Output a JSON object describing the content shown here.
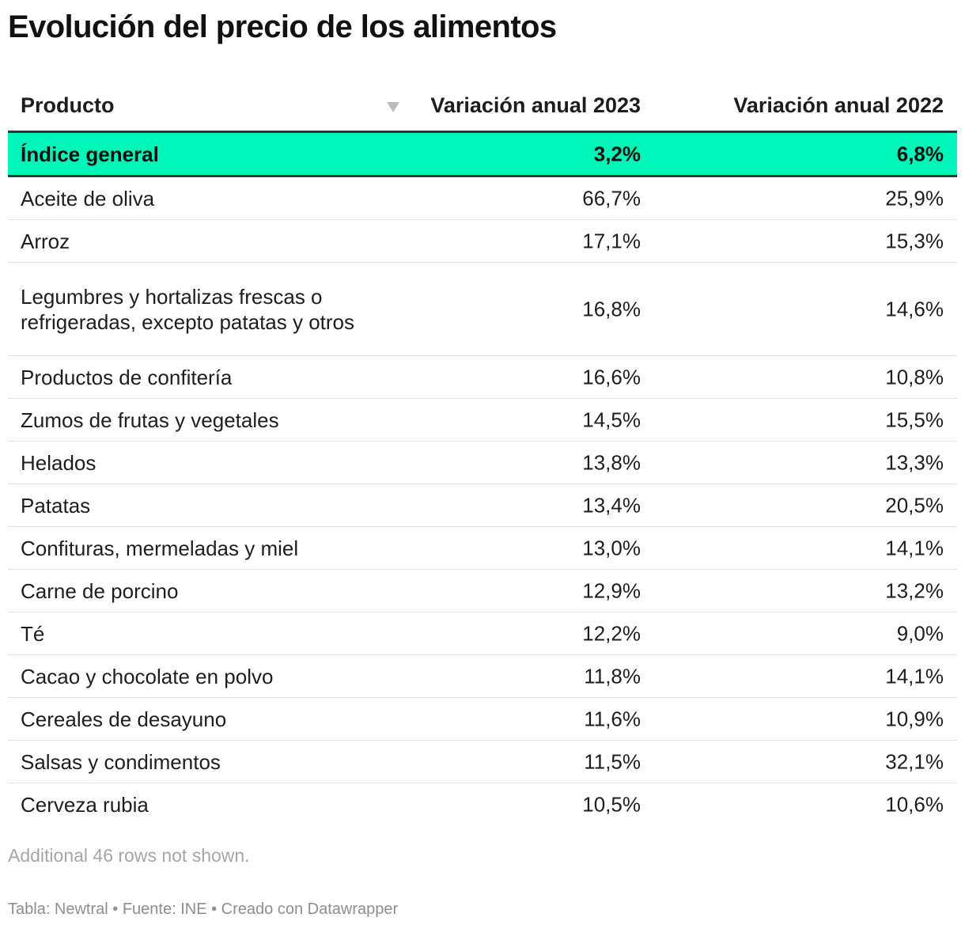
{
  "chart_data": {
    "type": "table",
    "title": "Evolución del precio de los alimentos",
    "columns": [
      "Producto",
      "Variación anual 2023",
      "Variación anual 2022"
    ],
    "sorted_column": "Variación anual 2023",
    "sort_direction": "descending",
    "highlight_color": "#00f5b8",
    "rows": [
      {
        "producto": "Índice general",
        "v2023": "3,2%",
        "v2022": "6,8%",
        "highlight": true
      },
      {
        "producto": "Aceite de oliva",
        "v2023": "66,7%",
        "v2022": "25,9%"
      },
      {
        "producto": "Arroz",
        "v2023": "17,1%",
        "v2022": "15,3%"
      },
      {
        "producto": "Legumbres y hortalizas frescas o refrigeradas, excepto patatas y otros",
        "v2023": "16,8%",
        "v2022": "14,6%"
      },
      {
        "producto": "Productos de confitería",
        "v2023": "16,6%",
        "v2022": "10,8%"
      },
      {
        "producto": "Zumos de frutas y vegetales",
        "v2023": "14,5%",
        "v2022": "15,5%"
      },
      {
        "producto": "Helados",
        "v2023": "13,8%",
        "v2022": "13,3%"
      },
      {
        "producto": "Patatas",
        "v2023": "13,4%",
        "v2022": "20,5%"
      },
      {
        "producto": "Confituras, mermeladas y miel",
        "v2023": "13,0%",
        "v2022": "14,1%"
      },
      {
        "producto": "Carne de porcino",
        "v2023": "12,9%",
        "v2022": "13,2%"
      },
      {
        "producto": "Té",
        "v2023": "12,2%",
        "v2022": "9,0%"
      },
      {
        "producto": "Cacao y chocolate en polvo",
        "v2023": "11,8%",
        "v2022": "14,1%"
      },
      {
        "producto": "Cereales de desayuno",
        "v2023": "11,6%",
        "v2022": "10,9%"
      },
      {
        "producto": "Salsas y condimentos",
        "v2023": "11,5%",
        "v2022": "32,1%"
      },
      {
        "producto": "Cerveza rubia",
        "v2023": "10,5%",
        "v2022": "10,6%"
      }
    ],
    "note": "Additional 46 rows not shown.",
    "footer": "Tabla: Newtral • Fuente: INE • Creado con Datawrapper"
  }
}
